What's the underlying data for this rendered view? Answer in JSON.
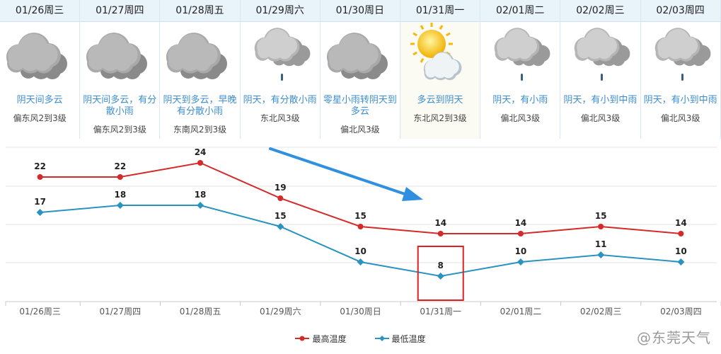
{
  "forecast": [
    {
      "date": "01/26周三",
      "icon": "cloudy-icon",
      "desc": "阴天间多云",
      "wind": "偏东风2到3级"
    },
    {
      "date": "01/27周四",
      "icon": "cloudy-icon",
      "desc": "阴天间多云，有分散小雨",
      "wind": "偏东风2到3级"
    },
    {
      "date": "01/28周五",
      "icon": "cloudy-icon",
      "desc": "阴天到多云，早晚有分散小雨",
      "wind": "东南风2到3级"
    },
    {
      "date": "01/29周六",
      "icon": "light-rain-icon",
      "desc": "阴天，有分散小雨",
      "wind": "东北风3级"
    },
    {
      "date": "01/30周日",
      "icon": "cloudy-icon",
      "desc": "零星小雨转阴天到多云",
      "wind": "偏北风3级"
    },
    {
      "date": "01/31周一",
      "icon": "partly-cloudy-icon",
      "desc": "多云到阴天",
      "wind": "东北风2到3级"
    },
    {
      "date": "02/01周二",
      "icon": "light-rain-icon",
      "desc": "阴天，有小雨",
      "wind": "偏北风3级"
    },
    {
      "date": "02/02周三",
      "icon": "light-rain-icon",
      "desc": "阴天，有小到中雨",
      "wind": "偏北风3级"
    },
    {
      "date": "02/03周四",
      "icon": "light-rain-icon",
      "desc": "阴天，有小到中雨",
      "wind": "偏北风3级"
    }
  ],
  "chart_data": {
    "type": "line",
    "categories": [
      "01/26周三",
      "01/27周四",
      "01/28周五",
      "01/29周六",
      "01/30周日",
      "01/31周一",
      "02/01周二",
      "02/02周三",
      "02/03周四"
    ],
    "series": [
      {
        "name": "最高温度",
        "color": "#d42a2a",
        "values": [
          22,
          22,
          24,
          19,
          15,
          14,
          14,
          15,
          14
        ]
      },
      {
        "name": "最低温度",
        "color": "#2a93c0",
        "values": [
          17,
          18,
          18,
          15,
          10,
          8,
          10,
          11,
          10
        ]
      }
    ],
    "ylim": [
      6,
      25
    ],
    "grid": true,
    "legend": "bottom-center",
    "annotations": [
      "trend-arrow-down",
      "minimum-highlight-box"
    ]
  },
  "colors": {
    "arrow": "#2f8fe0",
    "highlight_box": "#e02020",
    "date_header_bg": "#e9f3fa",
    "desc_text": "#3c8ed0"
  },
  "watermark": "@东莞天气"
}
